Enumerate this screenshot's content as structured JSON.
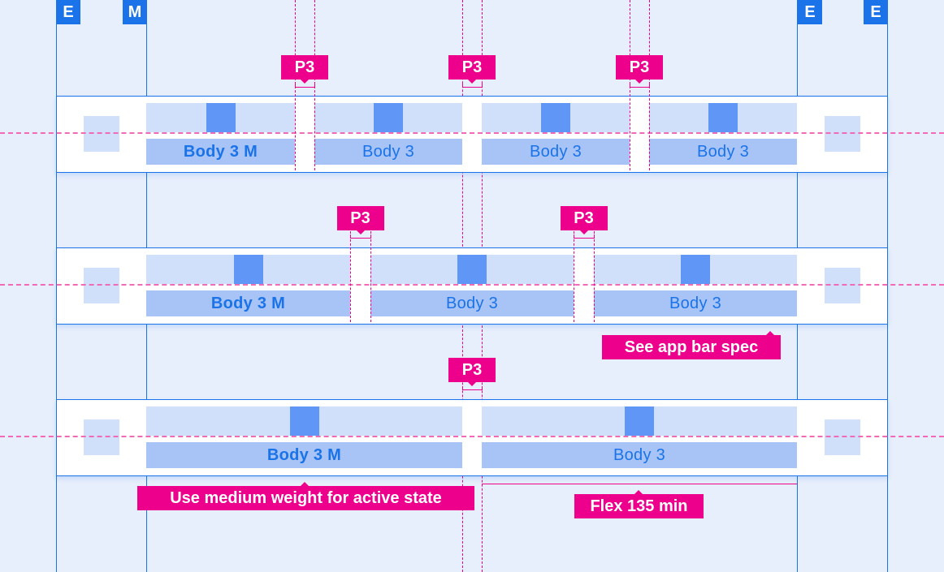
{
  "colors": {
    "background": "#e8effc",
    "keyline": "#1a73e8",
    "redline": "#ec008c",
    "tab_fill": "#d0e0fa",
    "label_fill": "#a8c4f7",
    "icon_fill": "#6096f5"
  },
  "badges": [
    "E",
    "M",
    "E",
    "E"
  ],
  "rows": [
    {
      "tabs": [
        {
          "label": "Body 3 M",
          "active": true
        },
        {
          "label": "Body 3",
          "active": false
        },
        {
          "label": "Body 3",
          "active": false
        },
        {
          "label": "Body 3",
          "active": false
        }
      ],
      "gap_labels": [
        "P3",
        "P3",
        "P3"
      ]
    },
    {
      "tabs": [
        {
          "label": "Body 3 M",
          "active": true
        },
        {
          "label": "Body 3",
          "active": false
        },
        {
          "label": "Body 3",
          "active": false
        }
      ],
      "gap_labels": [
        "P3",
        "P3"
      ]
    },
    {
      "tabs": [
        {
          "label": "Body 3 M",
          "active": true
        },
        {
          "label": "Body 3",
          "active": false
        }
      ],
      "gap_labels": [
        "P3"
      ]
    }
  ],
  "annotations": {
    "app_bar": "See app bar spec",
    "active_state": "Use medium weight for active state",
    "flex": "Flex 135 min"
  }
}
